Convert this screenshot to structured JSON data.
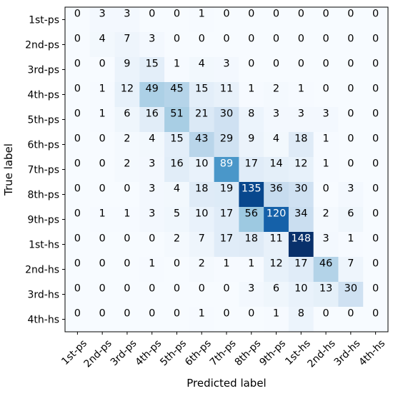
{
  "chart_data": {
    "type": "heatmap",
    "colormap": "Blues",
    "xlabel": "Predicted label",
    "ylabel": "True label",
    "x_categories": [
      "1st-ps",
      "2nd-ps",
      "3rd-ps",
      "4th-ps",
      "5th-ps",
      "6th-ps",
      "7th-ps",
      "8th-ps",
      "9th-ps",
      "1st-hs",
      "2nd-hs",
      "3rd-hs",
      "4th-hs"
    ],
    "y_categories": [
      "1st-ps",
      "2nd-ps",
      "3rd-ps",
      "4th-ps",
      "5th-ps",
      "6th-ps",
      "7th-ps",
      "8th-ps",
      "9th-ps",
      "1st-hs",
      "2nd-hs",
      "3rd-hs",
      "4th-hs"
    ],
    "matrix": [
      [
        0,
        3,
        3,
        0,
        0,
        1,
        0,
        0,
        0,
        0,
        0,
        0,
        0
      ],
      [
        0,
        4,
        7,
        3,
        0,
        0,
        0,
        0,
        0,
        0,
        0,
        0,
        0
      ],
      [
        0,
        0,
        9,
        15,
        1,
        4,
        3,
        0,
        0,
        0,
        0,
        0,
        0
      ],
      [
        0,
        1,
        12,
        49,
        45,
        15,
        11,
        1,
        2,
        1,
        0,
        0,
        0
      ],
      [
        0,
        1,
        6,
        16,
        51,
        21,
        30,
        8,
        3,
        3,
        3,
        0,
        0
      ],
      [
        0,
        0,
        2,
        4,
        15,
        43,
        29,
        9,
        4,
        18,
        1,
        0,
        0
      ],
      [
        0,
        0,
        2,
        3,
        16,
        10,
        89,
        17,
        14,
        12,
        1,
        0,
        0
      ],
      [
        0,
        0,
        0,
        3,
        4,
        18,
        19,
        135,
        36,
        30,
        0,
        3,
        0
      ],
      [
        0,
        1,
        1,
        3,
        5,
        10,
        17,
        56,
        120,
        34,
        2,
        6,
        0
      ],
      [
        0,
        0,
        0,
        0,
        2,
        7,
        17,
        18,
        11,
        148,
        3,
        1,
        0
      ],
      [
        0,
        0,
        0,
        1,
        0,
        2,
        1,
        1,
        12,
        17,
        46,
        7,
        0
      ],
      [
        0,
        0,
        0,
        0,
        0,
        0,
        0,
        3,
        6,
        10,
        13,
        30,
        0
      ],
      [
        0,
        0,
        0,
        0,
        0,
        1,
        0,
        0,
        1,
        8,
        0,
        0,
        0
      ]
    ],
    "value_range": [
      0,
      148
    ],
    "text_color_threshold": 74,
    "grid": false
  }
}
